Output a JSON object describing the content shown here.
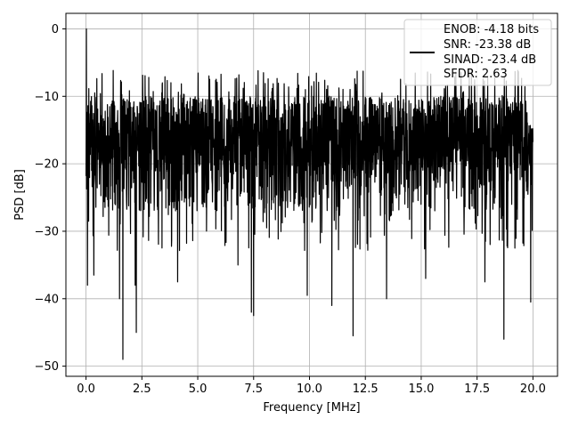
{
  "chart_data": {
    "type": "line",
    "xlabel": "Frequency [MHz]",
    "ylabel": "PSD [dB]",
    "xlim": [
      -0.9,
      21.1
    ],
    "ylim": [
      -51.5,
      2.3
    ],
    "xticks": [
      0.0,
      2.5,
      5.0,
      7.5,
      10.0,
      12.5,
      15.0,
      17.5,
      20.0
    ],
    "xtick_labels": [
      "0.0",
      "2.5",
      "5.0",
      "7.5",
      "10.0",
      "12.5",
      "15.0",
      "17.5",
      "20.0"
    ],
    "yticks": [
      0,
      -10,
      -20,
      -30,
      -40,
      -50
    ],
    "ytick_labels": [
      "0",
      "−10",
      "−20",
      "−30",
      "−40",
      "−50"
    ],
    "grid": true,
    "legend_position": "top-right",
    "legend_entries": [
      "ENOB: -4.18 bits",
      "SNR: -23.38 dB",
      "SINAD: -23.4 dB",
      "SFDR: 2.63"
    ],
    "series": [
      {
        "x_range": [
          0.0,
          20.0
        ],
        "peak": {
          "x": 0.02,
          "y": 0.0
        },
        "noise_floor_typical": [
          -27,
          -10
        ],
        "deep_dips": [
          {
            "x": 0.07,
            "y": -38.0
          },
          {
            "x": 0.35,
            "y": -36.5
          },
          {
            "x": 1.5,
            "y": -40.0
          },
          {
            "x": 1.65,
            "y": -49.0
          },
          {
            "x": 2.2,
            "y": -38.0
          },
          {
            "x": 2.25,
            "y": -45.0
          },
          {
            "x": 4.1,
            "y": -37.5
          },
          {
            "x": 6.8,
            "y": -35.0
          },
          {
            "x": 7.4,
            "y": -42.0
          },
          {
            "x": 7.5,
            "y": -42.5
          },
          {
            "x": 9.9,
            "y": -39.5
          },
          {
            "x": 11.0,
            "y": -41.0
          },
          {
            "x": 11.95,
            "y": -45.5
          },
          {
            "x": 13.45,
            "y": -40.0
          },
          {
            "x": 15.2,
            "y": -37.0
          },
          {
            "x": 17.85,
            "y": -37.5
          },
          {
            "x": 18.7,
            "y": -46.0
          },
          {
            "x": 19.9,
            "y": -40.5
          }
        ]
      }
    ],
    "line_color": "#000000"
  }
}
